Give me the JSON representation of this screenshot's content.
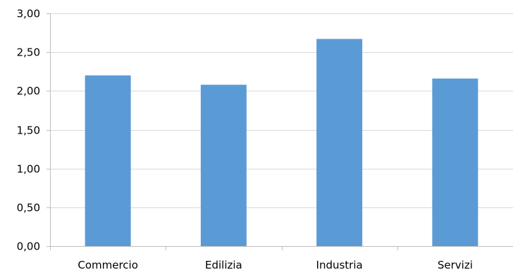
{
  "chart_data": {
    "type": "bar",
    "title": "",
    "xlabel": "",
    "ylabel": "",
    "categories": [
      "Commercio",
      "Edilizia",
      "Industria",
      "Servizi"
    ],
    "values": [
      2.2,
      2.08,
      2.67,
      2.16
    ],
    "ylim": [
      0,
      3
    ],
    "yticks": [
      "0,00",
      "0,50",
      "1,00",
      "1,50",
      "2,00",
      "2,50",
      "3,00"
    ],
    "ytick_values": [
      0,
      0.5,
      1,
      1.5,
      2,
      2.5,
      3
    ],
    "bar_color": "#5b9bd5",
    "grid": true,
    "legend": "none"
  }
}
